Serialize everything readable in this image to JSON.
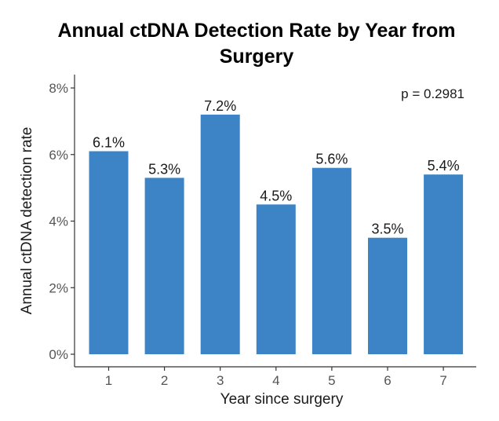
{
  "chart_data": {
    "type": "bar",
    "title_lines": [
      "Annual ctDNA Detection Rate by Year from",
      "Surgery"
    ],
    "xlabel": "Year since surgery",
    "ylabel": "Annual ctDNA detection rate",
    "categories": [
      "1",
      "2",
      "3",
      "4",
      "5",
      "6",
      "7"
    ],
    "values": [
      6.1,
      5.3,
      7.2,
      4.5,
      5.6,
      3.5,
      5.4
    ],
    "data_labels": [
      "6.1%",
      "5.3%",
      "7.2%",
      "4.5%",
      "5.6%",
      "3.5%",
      "5.4%"
    ],
    "ylim": [
      0,
      8
    ],
    "yticks": [
      0,
      2,
      4,
      6,
      8
    ],
    "ytick_labels": [
      "0%",
      "2%",
      "4%",
      "6%",
      "8%"
    ],
    "annotation": "p = 0.2981",
    "bar_color": "#3d84c6",
    "grid": false,
    "legend": "none"
  }
}
